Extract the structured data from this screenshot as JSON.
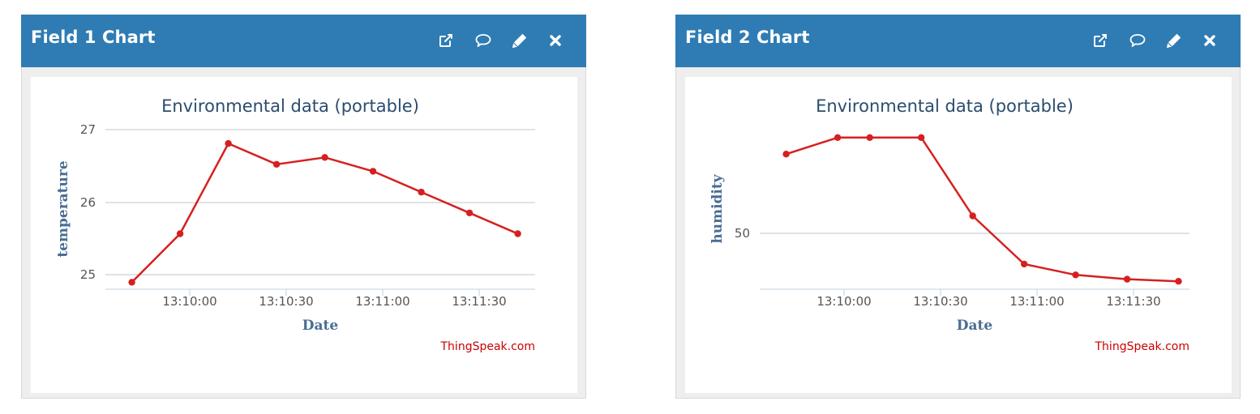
{
  "widgets": [
    {
      "header": {
        "title": "Field 1 Chart",
        "icons": [
          "external-link-icon",
          "comment-icon",
          "pencil-icon",
          "close-icon"
        ]
      },
      "chart_data": {
        "type": "line",
        "title": "Environmental data (portable)",
        "xlabel": "Date",
        "ylabel": "temperature",
        "credit": "ThingSpeak.com",
        "x_ticks": [
          "13:10:00",
          "13:10:30",
          "13:11:00",
          "13:11:30"
        ],
        "y_ticks": [
          "25",
          "26",
          "27"
        ],
        "ylim": [
          24.8,
          27.1
        ],
        "grid": true,
        "series": [
          {
            "color": "#d62020",
            "points": [
              {
                "t": "13:09:42",
                "y": 24.9
              },
              {
                "t": "13:09:57",
                "y": 25.6
              },
              {
                "t": "13:10:12",
                "y": 26.9
              },
              {
                "t": "13:10:27",
                "y": 26.6
              },
              {
                "t": "13:10:42",
                "y": 26.7
              },
              {
                "t": "13:10:57",
                "y": 26.5
              },
              {
                "t": "13:11:12",
                "y": 26.2
              },
              {
                "t": "13:11:27",
                "y": 25.9
              },
              {
                "t": "13:11:42",
                "y": 25.6
              }
            ]
          }
        ]
      }
    },
    {
      "header": {
        "title": "Field 2 Chart",
        "icons": [
          "external-link-icon",
          "comment-icon",
          "pencil-icon",
          "close-icon"
        ]
      },
      "chart_data": {
        "type": "line",
        "title": "Environmental data (portable)",
        "xlabel": "Date",
        "ylabel": "humidity",
        "credit": "ThingSpeak.com",
        "x_ticks": [
          "13:10:00",
          "13:10:30",
          "13:11:00",
          "13:11:30"
        ],
        "y_ticks": [
          "50"
        ],
        "ylim": [
          42.2,
          64.4
        ],
        "grid": true,
        "series": [
          {
            "color": "#d62020",
            "points": [
              {
                "t": "13:09:42",
                "y": 61.0
              },
              {
                "t": "13:09:58",
                "y": 63.3
              },
              {
                "t": "13:10:08",
                "y": 63.3
              },
              {
                "t": "13:10:24",
                "y": 63.3
              },
              {
                "t": "13:10:40",
                "y": 52.4
              },
              {
                "t": "13:10:56",
                "y": 45.7
              },
              {
                "t": "13:11:12",
                "y": 44.2
              },
              {
                "t": "13:11:28",
                "y": 43.6
              },
              {
                "t": "13:11:44",
                "y": 43.3
              }
            ]
          }
        ]
      }
    }
  ]
}
